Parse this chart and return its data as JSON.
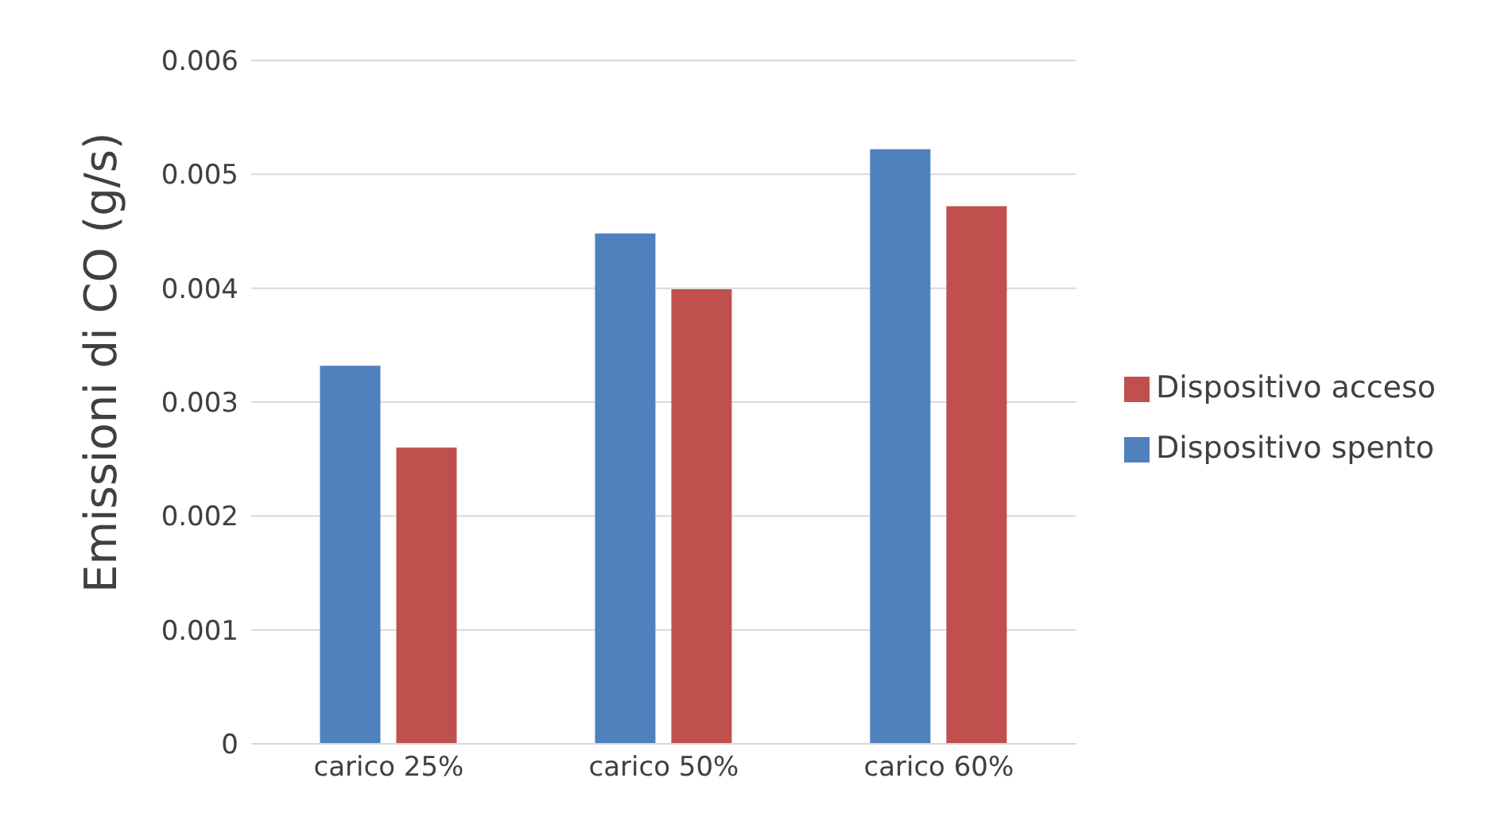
{
  "chart_data": {
    "type": "bar",
    "ylabel": "Emissioni di CO (g/s)",
    "categories": [
      "carico 25%",
      "carico 50%",
      "carico 60%"
    ],
    "series": [
      {
        "name": "Dispositivo spento",
        "color": "#4f81bd",
        "values": [
          0.00332,
          0.00448,
          0.00522
        ]
      },
      {
        "name": "Dispositivo acceso",
        "color": "#c0504d",
        "values": [
          0.0026,
          0.00399,
          0.00472
        ]
      }
    ],
    "ylim": [
      0,
      0.006
    ],
    "yticks": [
      0,
      0.001,
      0.002,
      0.003,
      0.004,
      0.005,
      0.006
    ],
    "grid": "y",
    "legend": "right"
  }
}
